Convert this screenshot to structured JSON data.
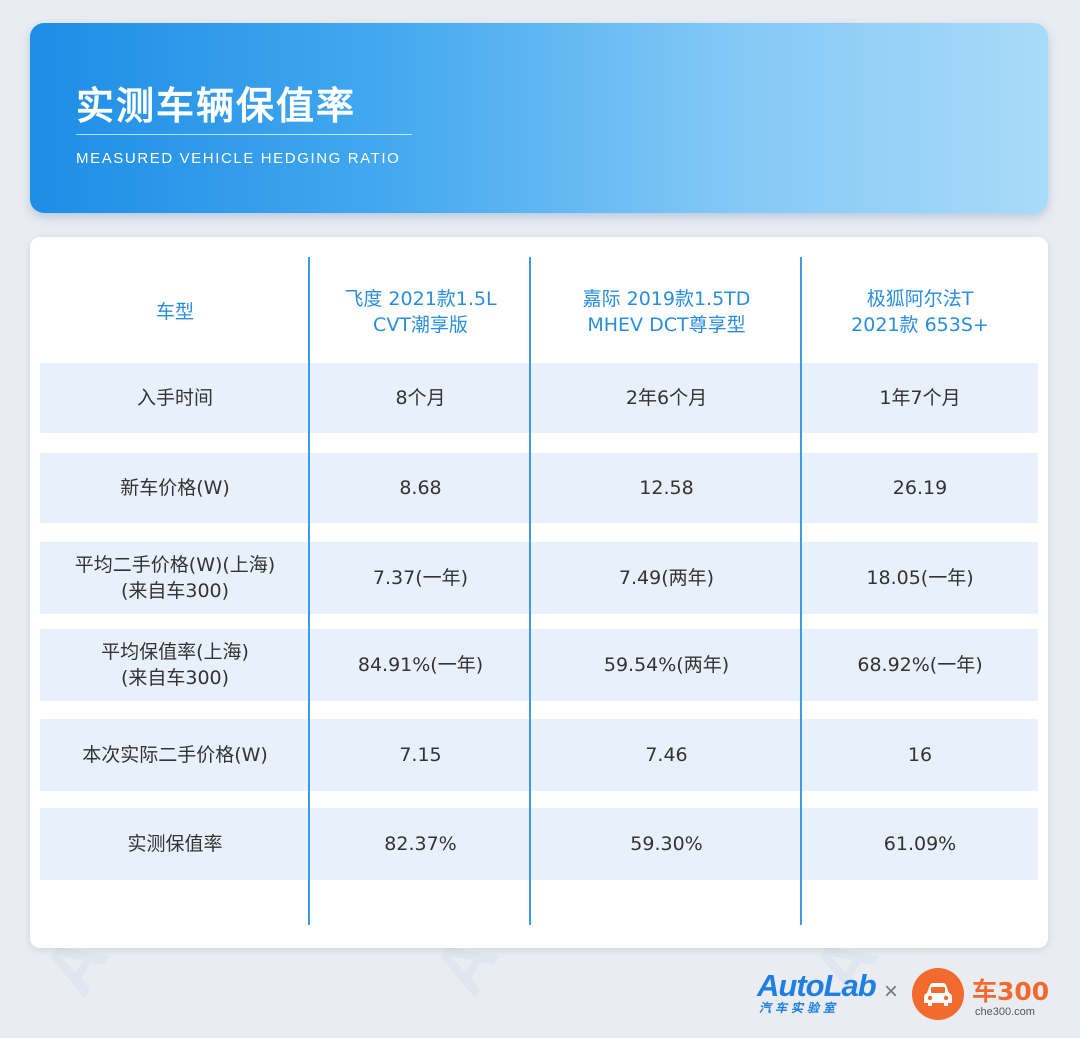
{
  "header": {
    "title": "实测车辆保值率",
    "subtitle": "MEASURED VEHICLE HEDGING RATIO"
  },
  "table": {
    "columns": [
      "车型",
      "飞度 2021款1.5L\nCVT潮享版",
      "嘉际 2019款1.5TD\nMHEV DCT尊享型",
      "极狐阿尔法T\n2021款 653S+"
    ],
    "rows": [
      {
        "label": "入手时间",
        "values": [
          "8个月",
          "2年6个月",
          "1年7个月"
        ]
      },
      {
        "label": "新车价格(W)",
        "values": [
          "8.68",
          "12.58",
          "26.19"
        ]
      },
      {
        "label": "平均二手价格(W)(上海)\n(来自车300)",
        "values": [
          "7.37(一年)",
          "7.49(两年)",
          "18.05(一年)"
        ]
      },
      {
        "label": "平均保值率(上海)\n(来自车300)",
        "values": [
          "84.91%(一年)",
          "59.54%(两年)",
          "68.92%(一年)"
        ]
      },
      {
        "label": "本次实际二手价格(W)",
        "values": [
          "7.15",
          "7.46",
          "16"
        ]
      },
      {
        "label": "实测保值率",
        "values": [
          "82.37%",
          "59.30%",
          "61.09%"
        ]
      }
    ]
  },
  "footer": {
    "autolab_name": "AutoLab",
    "autolab_cn": "汽车实验室",
    "separator": "×",
    "che300_name": "车300",
    "che300_url": "che300.com"
  },
  "watermark": "AutoLab",
  "colors": {
    "accent": "#2a8ee0",
    "divider": "#3a9ce6",
    "row_band": "#e8f1fb",
    "che300_orange": "#f26a2e",
    "autolab_blue": "#1f7fe0"
  }
}
